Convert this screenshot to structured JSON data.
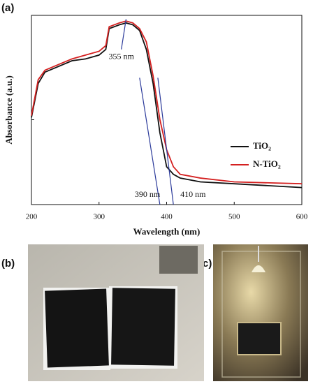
{
  "panel_labels": [
    "(a)",
    "(b)",
    "(c)"
  ],
  "chart_data": {
    "type": "line",
    "xlabel": "Wavelength (nm)",
    "ylabel": "Absorbance (a.u.)",
    "x": [
      200,
      210,
      220,
      240,
      260,
      280,
      300,
      310,
      315,
      330,
      340,
      350,
      360,
      370,
      380,
      390,
      400,
      410,
      420,
      450,
      500,
      600
    ],
    "series": [
      {
        "name": "TiO₂",
        "color": "#111111",
        "values": [
          0.46,
          0.64,
          0.7,
          0.73,
          0.76,
          0.77,
          0.79,
          0.82,
          0.93,
          0.95,
          0.96,
          0.95,
          0.92,
          0.82,
          0.64,
          0.38,
          0.2,
          0.16,
          0.14,
          0.12,
          0.11,
          0.09
        ]
      },
      {
        "name": "N-TiO₂",
        "color": "#d42020",
        "values": [
          0.47,
          0.66,
          0.71,
          0.74,
          0.77,
          0.79,
          0.81,
          0.84,
          0.94,
          0.96,
          0.97,
          0.96,
          0.93,
          0.86,
          0.68,
          0.45,
          0.29,
          0.2,
          0.16,
          0.14,
          0.12,
          0.11
        ]
      }
    ],
    "xlim": [
      200,
      600
    ],
    "xticks": [
      200,
      300,
      400,
      500,
      600
    ],
    "ylim": [
      0,
      1
    ],
    "annotations": [
      {
        "text": "355 nm",
        "x": 355
      },
      {
        "text": "390 nm",
        "x": 390
      },
      {
        "text": "410 nm",
        "x": 410
      }
    ],
    "annotation_color": "#2b3a9a",
    "legend": "right"
  }
}
